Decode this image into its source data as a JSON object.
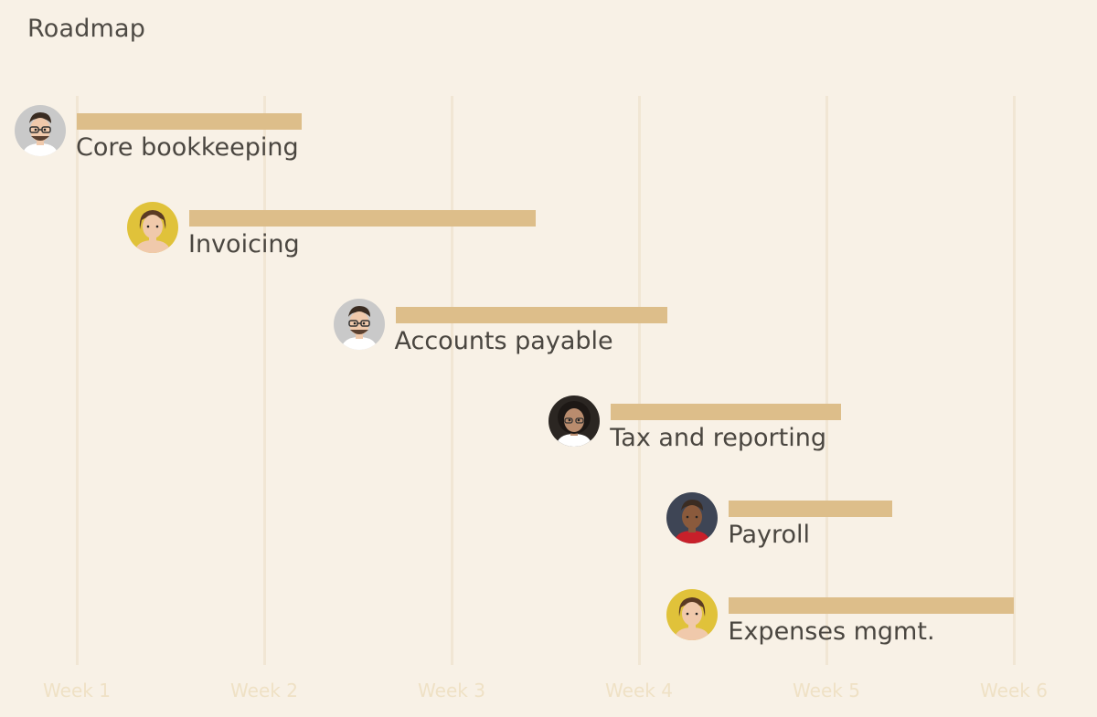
{
  "page": {
    "title": "Roadmap"
  },
  "timeline": {
    "weeks": [
      "Week 1",
      "Week 2",
      "Week 3",
      "Week 4",
      "Week 5",
      "Week 6"
    ],
    "tasks": [
      {
        "label": "Core bookkeeping",
        "start_week": 1.0,
        "end_week": 2.2,
        "assignee_avatar": "man-glasses-avatar",
        "avatar_bg": "#c9c9c9"
      },
      {
        "label": "Invoicing",
        "start_week": 1.6,
        "end_week": 3.45,
        "assignee_avatar": "woman-yellow-avatar",
        "avatar_bg": "#e0c23a"
      },
      {
        "label": "Accounts payable",
        "start_week": 2.7,
        "end_week": 4.15,
        "assignee_avatar": "man-glasses-avatar",
        "avatar_bg": "#c9c9c9"
      },
      {
        "label": "Tax and reporting",
        "start_week": 3.85,
        "end_week": 5.08,
        "assignee_avatar": "woman-curly-avatar",
        "avatar_bg": "#2b2622"
      },
      {
        "label": "Payroll",
        "start_week": 4.48,
        "end_week": 5.35,
        "assignee_avatar": "man-red-jacket-avatar",
        "avatar_bg": "#3e4555"
      },
      {
        "label": "Expenses mgmt.",
        "start_week": 4.48,
        "end_week": 6.0,
        "assignee_avatar": "woman-yellow-avatar",
        "avatar_bg": "#e0c23a"
      }
    ]
  }
}
